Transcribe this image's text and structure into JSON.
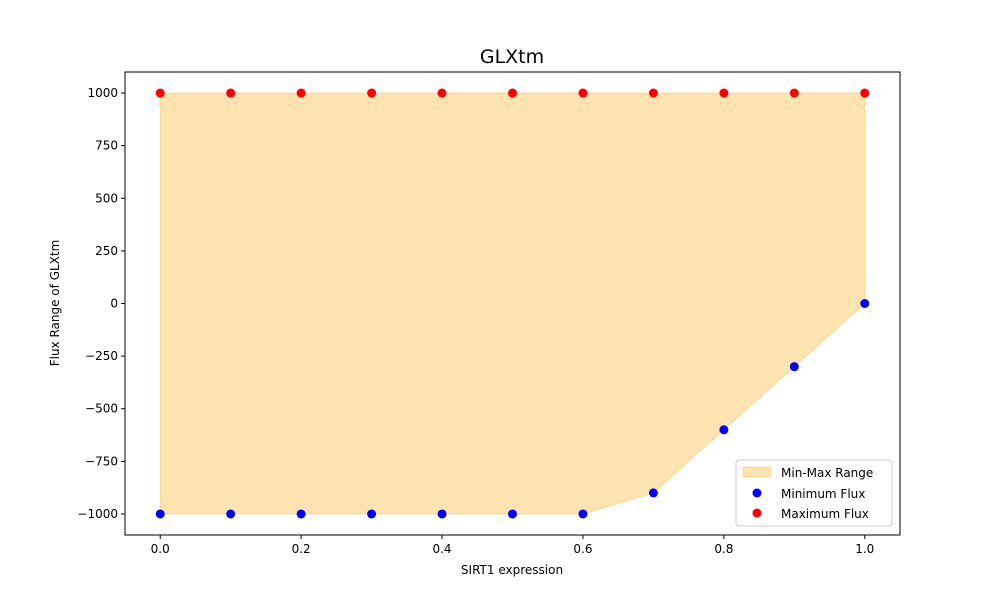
{
  "chart_data": {
    "type": "scatter",
    "title": "GLXtm",
    "xlabel": "SIRT1 expression",
    "ylabel": "Flux Range of GLXtm",
    "xlim": [
      -0.05,
      1.05
    ],
    "ylim": [
      -1100,
      1100
    ],
    "x_ticks": [
      0.0,
      0.2,
      0.4,
      0.6,
      0.8,
      1.0
    ],
    "x_tick_labels": [
      "0.0",
      "0.2",
      "0.4",
      "0.6",
      "0.8",
      "1.0"
    ],
    "y_ticks": [
      -1000,
      -750,
      -500,
      -250,
      0,
      250,
      500,
      750,
      1000
    ],
    "y_tick_labels": [
      "−1000",
      "−750",
      "−500",
      "−250",
      "0",
      "250",
      "500",
      "750",
      "1000"
    ],
    "grid": false,
    "legend_position": "lower-right",
    "x": [
      0.0,
      0.1,
      0.2,
      0.3,
      0.4,
      0.5,
      0.6,
      0.7,
      0.8,
      0.9,
      1.0
    ],
    "fill": {
      "name": "Min-Max Range",
      "color": "#FFA500",
      "alpha": 0.3
    },
    "series": [
      {
        "name": "Minimum Flux",
        "color": "#0000FF",
        "values": [
          -1000,
          -1000,
          -1000,
          -1000,
          -1000,
          -1000,
          -1000,
          -900,
          -600,
          -300,
          0
        ]
      },
      {
        "name": "Maximum Flux",
        "color": "#FF0000",
        "values": [
          1000,
          1000,
          1000,
          1000,
          1000,
          1000,
          1000,
          1000,
          1000,
          1000,
          1000
        ]
      }
    ]
  }
}
